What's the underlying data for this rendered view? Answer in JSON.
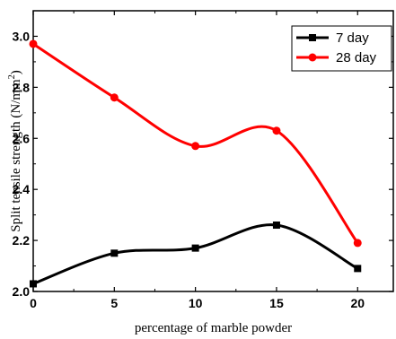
{
  "chart_data": {
    "type": "line",
    "title": "",
    "xlabel": "percentage of marble powder",
    "ylabel": "Split tensile strength (N/mm²)",
    "ylabel_parts": {
      "main": "Split tensile strength (N/mm",
      "sup": "2",
      "close": ")"
    },
    "x": [
      0,
      5,
      10,
      15,
      20
    ],
    "xlim": [
      0,
      22.2
    ],
    "ylim": [
      2.0,
      3.1
    ],
    "x_ticks": [
      0,
      5,
      10,
      15,
      20
    ],
    "x_tick_labels": [
      "0",
      "5",
      "10",
      "15",
      "20"
    ],
    "y_ticks": [
      2.0,
      2.2,
      2.4,
      2.6,
      2.8,
      3.0
    ],
    "y_tick_labels": [
      "2.0",
      "2.2",
      "2.4",
      "2.6",
      "2.8",
      "3.0"
    ],
    "grid": false,
    "legend_position": "top-right",
    "series": [
      {
        "name": "7 day",
        "values": [
          2.03,
          2.15,
          2.17,
          2.26,
          2.09
        ],
        "color": "#000000",
        "marker": "square"
      },
      {
        "name": "28 day",
        "values": [
          2.97,
          2.76,
          2.57,
          2.63,
          2.19
        ],
        "color": "#ff0000",
        "marker": "circle"
      }
    ]
  }
}
